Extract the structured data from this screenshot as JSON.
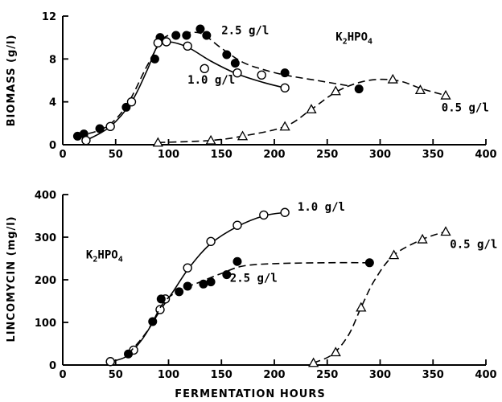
{
  "chart_data": [
    {
      "type": "line",
      "ylabel": "BIOMASS (g/l)",
      "xlabel": "",
      "xlim": [
        0,
        400
      ],
      "ylim": [
        0,
        12
      ],
      "xticks": [
        0,
        50,
        100,
        150,
        200,
        250,
        300,
        350,
        400
      ],
      "yticks": [
        0,
        4,
        8,
        12
      ],
      "annotations": [
        {
          "text": "2.5 g/l",
          "x": 150,
          "y": 10.3
        },
        {
          "text": "1.0 g/l",
          "x": 118,
          "y": 5.7
        },
        {
          "text": "0.5 g/l",
          "x": 358,
          "y": 3.1
        },
        {
          "text": "K2HPO4",
          "x": 258,
          "y": 9.7
        }
      ],
      "series": [
        {
          "marker": "filled-circle",
          "line": "dashed",
          "points": [
            [
              14,
              0.8
            ],
            [
              20,
              1.0
            ],
            [
              35,
              1.5
            ],
            [
              60,
              3.5
            ],
            [
              87,
              8.0
            ],
            [
              92,
              10.0
            ],
            [
              107,
              10.2
            ],
            [
              117,
              10.2
            ],
            [
              130,
              10.8
            ],
            [
              136,
              10.2
            ],
            [
              155,
              8.4
            ],
            [
              163,
              7.6
            ],
            [
              210,
              6.7
            ],
            [
              280,
              5.2
            ]
          ],
          "curve": [
            [
              14,
              0.8
            ],
            [
              40,
              1.6
            ],
            [
              60,
              3.6
            ],
            [
              80,
              7.4
            ],
            [
              95,
              9.9
            ],
            [
              110,
              10.3
            ],
            [
              130,
              10.4
            ],
            [
              150,
              9.0
            ],
            [
              170,
              7.7
            ],
            [
              190,
              7.0
            ],
            [
              210,
              6.5
            ],
            [
              240,
              6.0
            ],
            [
              270,
              5.5
            ]
          ]
        },
        {
          "marker": "open-circle",
          "line": "solid",
          "points": [
            [
              22,
              0.4
            ],
            [
              45,
              1.7
            ],
            [
              65,
              4.0
            ],
            [
              90,
              9.5
            ],
            [
              98,
              9.6
            ],
            [
              118,
              9.2
            ],
            [
              134,
              7.1
            ],
            [
              165,
              6.7
            ],
            [
              188,
              6.5
            ],
            [
              210,
              5.3
            ]
          ],
          "curve": [
            [
              22,
              0.4
            ],
            [
              45,
              1.7
            ],
            [
              65,
              4.0
            ],
            [
              80,
              7.0
            ],
            [
              90,
              9.3
            ],
            [
              100,
              9.6
            ],
            [
              118,
              9.1
            ],
            [
              140,
              7.8
            ],
            [
              165,
              6.6
            ],
            [
              190,
              5.8
            ],
            [
              210,
              5.3
            ]
          ]
        },
        {
          "marker": "open-triangle",
          "line": "dashed",
          "points": [
            [
              90,
              0.2
            ],
            [
              140,
              0.4
            ],
            [
              170,
              0.8
            ],
            [
              210,
              1.7
            ],
            [
              235,
              3.3
            ],
            [
              258,
              5.0
            ],
            [
              312,
              6.1
            ],
            [
              338,
              5.1
            ],
            [
              362,
              4.6
            ]
          ],
          "curve": [
            [
              90,
              0.2
            ],
            [
              140,
              0.4
            ],
            [
              170,
              0.8
            ],
            [
              210,
              1.7
            ],
            [
              235,
              3.3
            ],
            [
              258,
              4.9
            ],
            [
              280,
              5.8
            ],
            [
              300,
              6.1
            ],
            [
              320,
              5.9
            ],
            [
              340,
              5.2
            ],
            [
              362,
              4.6
            ]
          ]
        }
      ]
    },
    {
      "type": "line",
      "ylabel": "LINCOMYCIN (mg/l)",
      "xlabel": "FERMENTATION HOURS",
      "xlim": [
        0,
        400
      ],
      "ylim": [
        0,
        400
      ],
      "xticks": [
        0,
        50,
        100,
        150,
        200,
        250,
        300,
        350,
        400
      ],
      "yticks": [
        0,
        100,
        200,
        300,
        400
      ],
      "annotations": [
        {
          "text": "1.0 g/l",
          "x": 222,
          "y": 362
        },
        {
          "text": "2.5 g/l",
          "x": 158,
          "y": 195
        },
        {
          "text": "0.5 g/l",
          "x": 366,
          "y": 275
        },
        {
          "text": "K2HPO4",
          "x": 22,
          "y": 250
        }
      ],
      "series": [
        {
          "marker": "open-circle",
          "line": "solid",
          "points": [
            [
              45,
              8
            ],
            [
              67,
              35
            ],
            [
              92,
              130
            ],
            [
              97,
              155
            ],
            [
              118,
              228
            ],
            [
              140,
              290
            ],
            [
              165,
              328
            ],
            [
              190,
              352
            ],
            [
              210,
              358
            ]
          ],
          "curve": [
            [
              45,
              8
            ],
            [
              60,
              20
            ],
            [
              75,
              60
            ],
            [
              90,
              120
            ],
            [
              105,
              175
            ],
            [
              120,
              230
            ],
            [
              140,
              285
            ],
            [
              165,
              325
            ],
            [
              190,
              350
            ],
            [
              210,
              358
            ]
          ]
        },
        {
          "marker": "filled-circle",
          "line": "dashed",
          "points": [
            [
              62,
              26
            ],
            [
              85,
              102
            ],
            [
              93,
              155
            ],
            [
              110,
              172
            ],
            [
              118,
              185
            ],
            [
              133,
              190
            ],
            [
              140,
              195
            ],
            [
              155,
              212
            ],
            [
              165,
              243
            ],
            [
              290,
              240
            ]
          ],
          "curve": [
            [
              62,
              26
            ],
            [
              80,
              80
            ],
            [
              95,
              145
            ],
            [
              110,
              175
            ],
            [
              130,
              195
            ],
            [
              150,
              215
            ],
            [
              170,
              232
            ],
            [
              200,
              238
            ],
            [
              250,
              240
            ],
            [
              290,
              240
            ]
          ]
        },
        {
          "marker": "open-triangle",
          "line": "dashed",
          "points": [
            [
              237,
              5
            ],
            [
              258,
              30
            ],
            [
              282,
              135
            ],
            [
              313,
              258
            ],
            [
              340,
              295
            ],
            [
              362,
              313
            ]
          ],
          "curve": [
            [
              237,
              5
            ],
            [
              255,
              25
            ],
            [
              270,
              70
            ],
            [
              282,
              135
            ],
            [
              295,
              200
            ],
            [
              313,
              258
            ],
            [
              340,
              295
            ],
            [
              362,
              313
            ]
          ]
        }
      ]
    }
  ]
}
